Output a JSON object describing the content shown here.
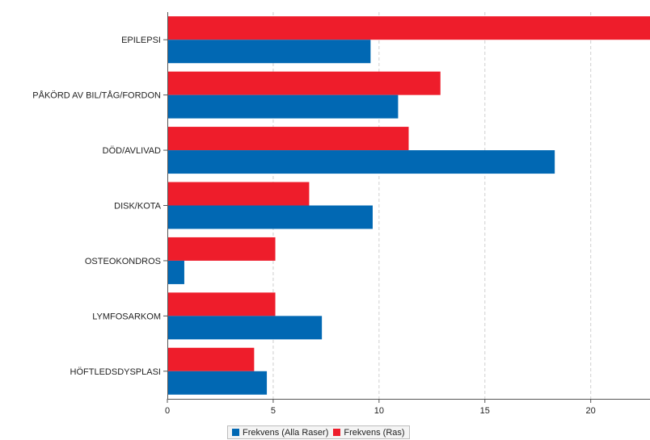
{
  "chart_data": {
    "type": "bar",
    "orientation": "horizontal",
    "title": "",
    "xlabel": "",
    "ylabel": "",
    "categories": [
      "EPILEPSI",
      "PÅKÖRD AV BIL/TÅG/FORDON",
      "DÖD/AVLIVAD",
      "DISK/KOTA",
      "OSTEOKONDROS",
      "LYMFOSARKOM",
      "HÖFTLEDSDYSPLASI"
    ],
    "series": [
      {
        "name": "Frekvens (Ras)",
        "color": "#ee1d2b",
        "values": [
          23.0,
          12.9,
          11.4,
          6.7,
          5.1,
          5.1,
          4.1
        ]
      },
      {
        "name": "Frekvens (Alla Raser)",
        "color": "#0168b3",
        "values": [
          9.6,
          10.9,
          18.3,
          9.7,
          0.8,
          7.3,
          4.7
        ]
      }
    ],
    "xlim": [
      0,
      22.8
    ],
    "xticks": [
      "0",
      "5",
      "10",
      "15",
      "20"
    ],
    "grid": true,
    "legend_position": "bottom",
    "legend": [
      {
        "label": "Frekvens (Alla Raser)",
        "color": "#0168b3"
      },
      {
        "label": "Frekvens (Ras)",
        "color": "#ee1d2b"
      }
    ]
  }
}
